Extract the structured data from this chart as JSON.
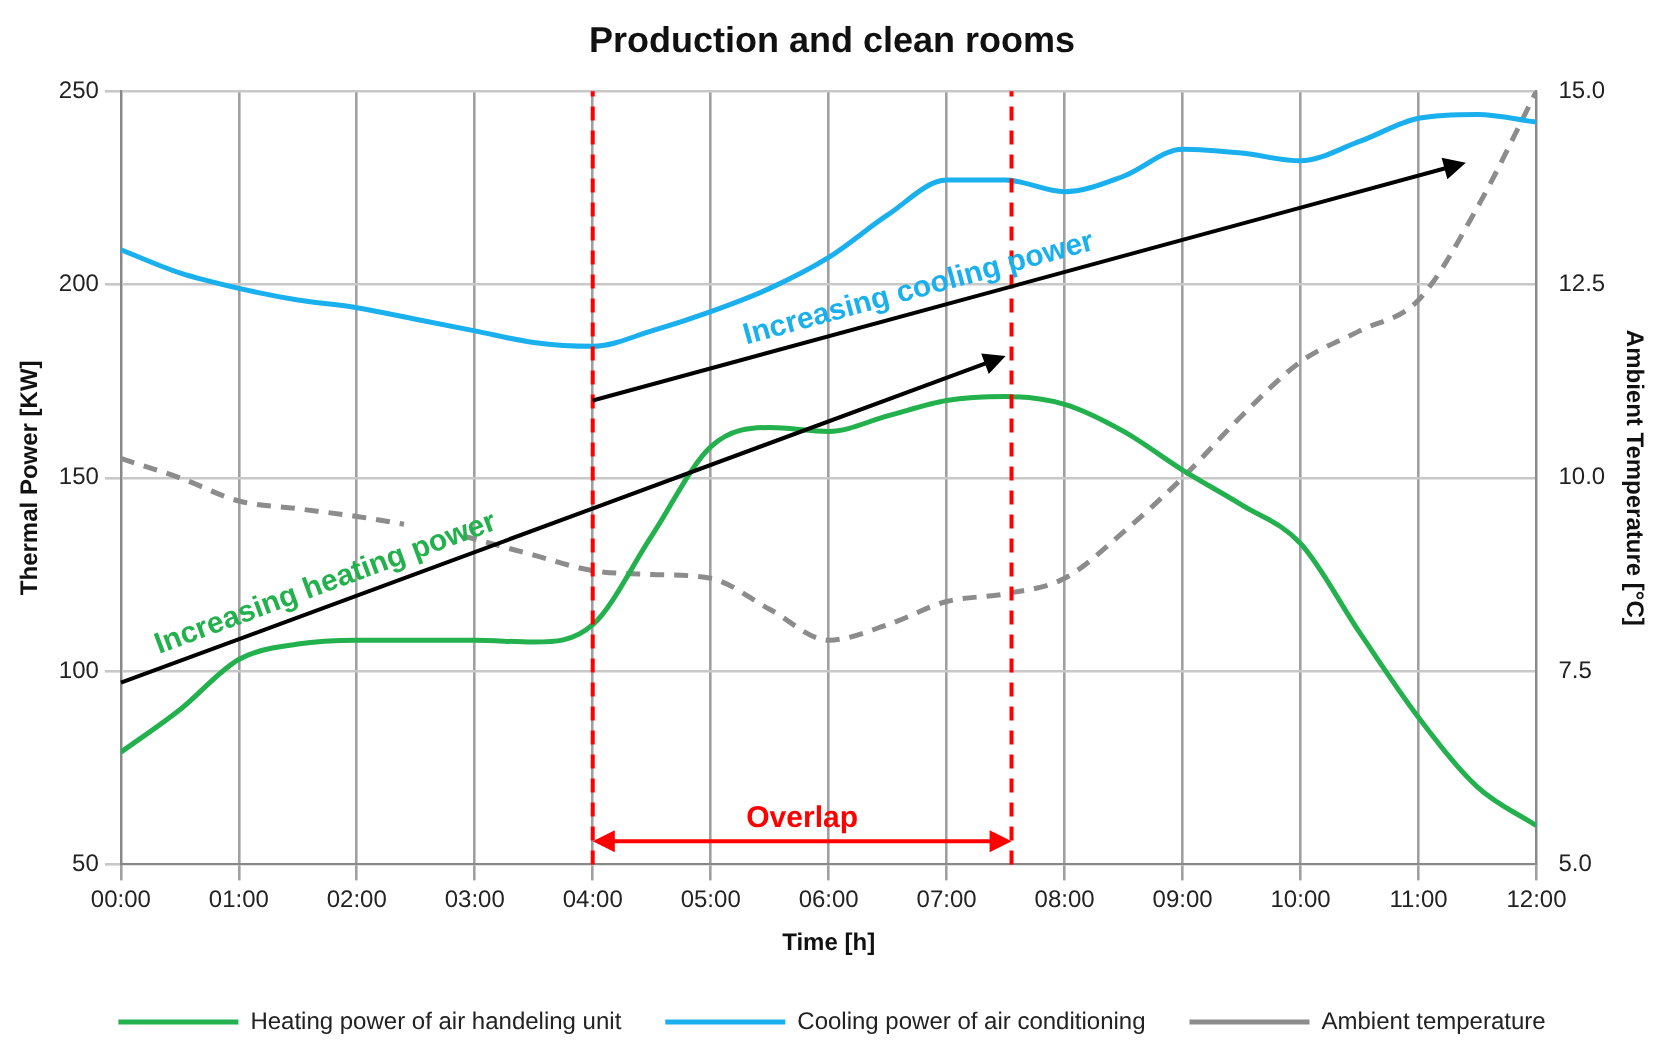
{
  "chart_data": {
    "type": "line",
    "title": "Production and clean rooms",
    "xlabel": "Time [h]",
    "ylabel": "Thermal Power [KW]",
    "y2label": "Ambient Temperature [°C]",
    "xlim": [
      0,
      12
    ],
    "xticks": [
      {
        "value": 0,
        "label": "00:00"
      },
      {
        "value": 1,
        "label": "01:00"
      },
      {
        "value": 2,
        "label": "02:00"
      },
      {
        "value": 3,
        "label": "03:00"
      },
      {
        "value": 4,
        "label": "04:00"
      },
      {
        "value": 5,
        "label": "05:00"
      },
      {
        "value": 6,
        "label": "06:00"
      },
      {
        "value": 7,
        "label": "07:00"
      },
      {
        "value": 8,
        "label": "08:00"
      },
      {
        "value": 9,
        "label": "09:00"
      },
      {
        "value": 10,
        "label": "10:00"
      },
      {
        "value": 11,
        "label": "11:00"
      },
      {
        "value": 12,
        "label": "12:00"
      }
    ],
    "ylim": [
      50,
      250
    ],
    "yticks": [
      50,
      100,
      150,
      200,
      250
    ],
    "y2lim": [
      5,
      15
    ],
    "y2ticks": [
      {
        "value": 5,
        "label": "5.0"
      },
      {
        "value": 7.5,
        "label": "7.5"
      },
      {
        "value": 10,
        "label": "10.0"
      },
      {
        "value": 12.5,
        "label": "12.5"
      },
      {
        "value": 15,
        "label": "15.0"
      }
    ],
    "x": [
      0,
      0.5,
      1,
      1.5,
      2,
      2.5,
      3,
      3.5,
      4,
      4.5,
      5,
      5.5,
      6,
      6.5,
      7,
      7.5,
      8,
      8.5,
      9,
      9.5,
      10,
      10.5,
      11,
      11.5,
      12
    ],
    "series": [
      {
        "name": "Heating power of air handeling unit",
        "color": "#22b14c",
        "values": [
          79,
          90,
          103,
          107,
          108,
          108,
          108,
          107.5,
          112,
          135,
          158,
          163,
          162,
          166,
          170,
          171,
          169,
          162,
          152,
          143,
          133,
          110,
          88,
          70,
          60
        ]
      },
      {
        "name": "Cooling power of air conditioning",
        "color": "#1ab0ee",
        "values": [
          209,
          203,
          199,
          196,
          194,
          191,
          188,
          185,
          184,
          188,
          193,
          199,
          207,
          218,
          227,
          227,
          224,
          228,
          235,
          234,
          232,
          237,
          243,
          244,
          242
        ]
      },
      {
        "name": "Ambient temperature",
        "color": "#8c8c8c",
        "axis": "y2",
        "line_style": "dashed",
        "x": [
          0,
          0.5,
          1,
          1.5,
          2,
          2.4,
          2.6,
          2.9,
          3.5,
          4,
          4.5,
          5,
          5.5,
          6,
          6.5,
          7,
          7.5,
          8,
          8.5,
          9,
          9.5,
          10,
          10.5,
          11,
          11.5,
          12
        ],
        "values": [
          10.25,
          10.0,
          9.7,
          9.6,
          9.5,
          9.4,
          null,
          9.25,
          9.0,
          8.8,
          8.75,
          8.7,
          8.3,
          7.9,
          8.1,
          8.4,
          8.5,
          8.7,
          9.3,
          10.0,
          10.8,
          11.5,
          11.9,
          12.3,
          13.5,
          15.0
        ]
      }
    ],
    "ref_lines": [
      {
        "axis": "x",
        "value": 4,
        "color": "#ff0000",
        "line_style": "dashed"
      },
      {
        "axis": "x",
        "value": 7.55,
        "color": "#ff0000",
        "line_style": "dashed"
      }
    ],
    "annotations": [
      "Increasing heating power",
      "Increasing cooling power",
      "Overlap"
    ],
    "grid": true,
    "legend": "bottom",
    "marker": "none",
    "line_style": "solid"
  }
}
